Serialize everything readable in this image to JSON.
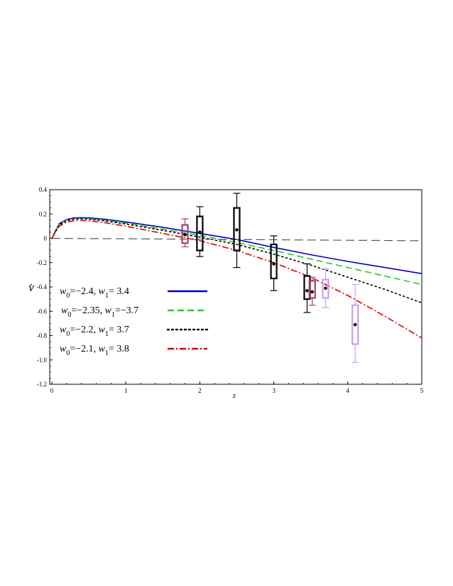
{
  "chart_data": {
    "type": "line",
    "xlabel": "z",
    "ylabel": "v̇",
    "xlim": [
      0,
      5
    ],
    "ylim": [
      -1.2,
      0.4
    ],
    "xticks": [
      0,
      1,
      2,
      3,
      4,
      5
    ],
    "yticks": [
      0.4,
      0.2,
      0,
      -0.2,
      -0.4,
      -0.6,
      -0.8,
      -1.0,
      -1.2
    ],
    "ytick_labels": [
      "0.4",
      "0.2",
      "0",
      "-0.2",
      "-0.4",
      "-0.6",
      "-0.8",
      "-1.0",
      "-1.2"
    ],
    "grid": false,
    "legend_position": "lower-left",
    "series": [
      {
        "name": "w0=−2.4, w1= 3.4",
        "color": "#0000cc",
        "style": "solid",
        "x": [
          0,
          0.1,
          0.2,
          0.3,
          0.4,
          0.5,
          0.7,
          1.0,
          1.5,
          2.0,
          2.5,
          3.0,
          3.5,
          4.0,
          4.5,
          5.0
        ],
        "y": [
          0,
          0.12,
          0.155,
          0.168,
          0.17,
          0.168,
          0.158,
          0.135,
          0.09,
          0.04,
          -0.01,
          -0.075,
          -0.135,
          -0.19,
          -0.24,
          -0.29
        ]
      },
      {
        "name": "w0=−2.35, w1=−3.7",
        "color": "#22cc22",
        "style": "dashed",
        "x": [
          0,
          0.1,
          0.2,
          0.3,
          0.4,
          0.5,
          0.7,
          1.0,
          1.5,
          2.0,
          2.5,
          3.0,
          3.5,
          4.0,
          4.5,
          5.0
        ],
        "y": [
          0,
          0.115,
          0.15,
          0.162,
          0.165,
          0.162,
          0.15,
          0.125,
          0.075,
          0.025,
          -0.035,
          -0.1,
          -0.17,
          -0.24,
          -0.31,
          -0.38
        ]
      },
      {
        "name": "w0=−2.2, w1= 3.7",
        "color": "#000000",
        "style": "dotted",
        "x": [
          0,
          0.1,
          0.2,
          0.3,
          0.4,
          0.5,
          0.7,
          1.0,
          1.5,
          2.0,
          2.5,
          3.0,
          3.5,
          4.0,
          4.5,
          5.0
        ],
        "y": [
          0,
          0.11,
          0.145,
          0.158,
          0.16,
          0.157,
          0.145,
          0.118,
          0.065,
          0.01,
          -0.05,
          -0.13,
          -0.22,
          -0.32,
          -0.42,
          -0.53
        ]
      },
      {
        "name": "w0=−2.1, w1= 3.8",
        "color": "#dd0000",
        "style": "dashdot",
        "x": [
          0,
          0.1,
          0.2,
          0.3,
          0.4,
          0.5,
          0.7,
          1.0,
          1.5,
          2.0,
          2.5,
          3.0,
          3.5,
          4.0,
          4.5,
          5.0
        ],
        "y": [
          0,
          0.1,
          0.133,
          0.145,
          0.147,
          0.143,
          0.13,
          0.1,
          0.04,
          -0.02,
          -0.1,
          -0.2,
          -0.32,
          -0.47,
          -0.64,
          -0.82
        ]
      },
      {
        "name": "",
        "color": "#555555",
        "style": "longdash",
        "x": [
          0,
          5
        ],
        "y": [
          0,
          -0.02
        ]
      }
    ],
    "boxes": [
      {
        "x": 1.8,
        "mean": 0.03,
        "box_low": -0.04,
        "box_high": 0.11,
        "whisker_low": -0.07,
        "whisker_high": 0.16,
        "color": "#a0406e"
      },
      {
        "x": 2.0,
        "mean": 0.05,
        "box_low": -0.1,
        "box_high": 0.18,
        "whisker_low": -0.15,
        "whisker_high": 0.26,
        "color": "#000000"
      },
      {
        "x": 2.5,
        "mean": 0.07,
        "box_low": -0.1,
        "box_high": 0.25,
        "whisker_low": -0.24,
        "whisker_high": 0.37,
        "color": "#000000"
      },
      {
        "x": 3.0,
        "mean": -0.21,
        "box_low": -0.33,
        "box_high": -0.05,
        "whisker_low": -0.43,
        "whisker_high": 0.02,
        "color": "#000000"
      },
      {
        "x": 3.45,
        "mean": -0.43,
        "box_low": -0.5,
        "box_high": -0.31,
        "whisker_low": -0.61,
        "whisker_high": -0.21,
        "color": "#000000"
      },
      {
        "x": 3.52,
        "mean": -0.44,
        "box_low": -0.49,
        "box_high": -0.35,
        "whisker_low": -0.55,
        "whisker_high": -0.32,
        "color": "#a0406e"
      },
      {
        "x": 3.7,
        "mean": -0.41,
        "box_low": -0.49,
        "box_high": -0.34,
        "whisker_low": -0.57,
        "whisker_high": -0.25,
        "color": "#c8a0f0"
      },
      {
        "x": 4.1,
        "mean": -0.71,
        "box_low": -0.87,
        "box_high": -0.55,
        "whisker_low": -1.02,
        "whisker_high": -0.38,
        "color": "#c8a0f0"
      }
    ]
  }
}
